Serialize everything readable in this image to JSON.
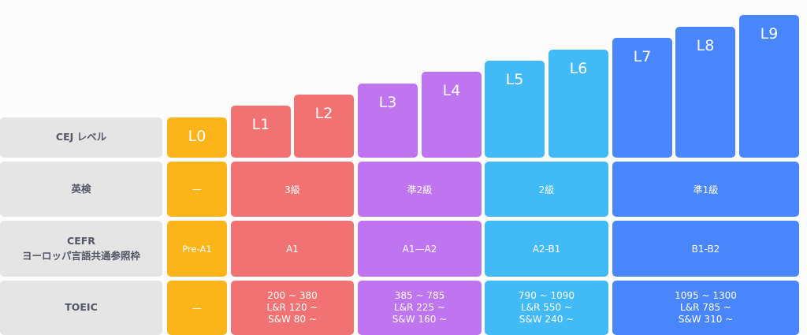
{
  "row_labels": {
    "cej": "CEJ レベル",
    "eiken": "英検",
    "cefr_line1": "CEFR",
    "cefr_line2": "ヨーロッパ言語共通参照枠",
    "toeic": "TOEIC"
  },
  "levels": [
    "L0",
    "L1",
    "L2",
    "L3",
    "L4",
    "L5",
    "L6",
    "L7",
    "L8",
    "L9"
  ],
  "eiken": {
    "l0": "—",
    "red": "3級",
    "purple": "準2級",
    "cyan": "2級",
    "blue": "準1級"
  },
  "cefr": {
    "l0": "Pre-A1",
    "red": "A1",
    "purple": "A1—A2",
    "cyan": "A2-B1",
    "blue": "B1-B2"
  },
  "toeic": {
    "l0": "—",
    "red": {
      "total": "200 ~ 380",
      "lr": "L&R  120 ~",
      "sw": "S&W  80 ~"
    },
    "purple": {
      "total": "385 ~ 785",
      "lr": "L&R  225 ~",
      "sw": "S&W 160 ~"
    },
    "cyan": {
      "total": "790 ~ 1090",
      "lr": "L&R  550 ~",
      "sw": "S&W 240 ~"
    },
    "blue": {
      "total": "1095 ~ 1300",
      "lr": "L&R  785 ~",
      "sw": "S&W 310 ~"
    }
  },
  "colors": {
    "l0": "#fbb419",
    "red": "#f07273",
    "purple": "#bf74f0",
    "cyan": "#41baf6",
    "blue": "#4a86fb",
    "label_bg": "#e6e5e6"
  }
}
